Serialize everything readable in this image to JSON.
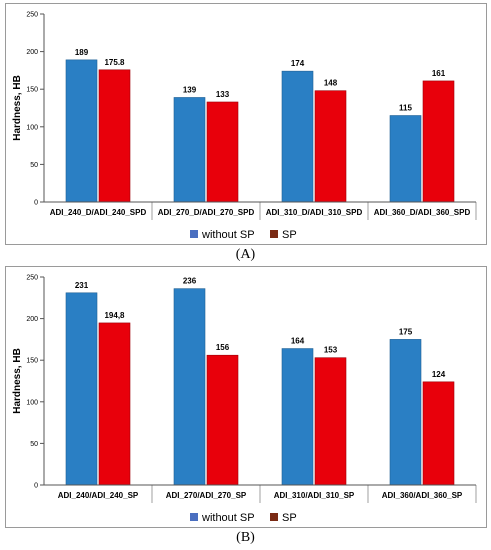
{
  "figure_labels": [
    "(A)",
    "(B)"
  ],
  "chart_data": [
    {
      "type": "bar",
      "categories": [
        "ADI_240_D/ADI_240_SPD",
        "ADI_270_D/ADI_270_SPD",
        "ADI_310_D/ADI_310_SPD",
        "ADI_360_D/ADI_360_SPD"
      ],
      "series": [
        {
          "name": "without SP",
          "values": [
            189,
            139,
            174,
            115
          ],
          "labels": [
            "189",
            "139",
            "174",
            "115"
          ],
          "color": "#2a7fc4"
        },
        {
          "name": "SP",
          "values": [
            175.8,
            133,
            148,
            161
          ],
          "labels": [
            "175.8",
            "133",
            "148",
            "161"
          ],
          "color": "#e8000b"
        }
      ],
      "ylabel": "Hardness, HB",
      "ylim": [
        0,
        250
      ],
      "yticks": [
        "0",
        "50",
        "100",
        "150",
        "200",
        "250"
      ],
      "legend_position": "bottom",
      "grid": false
    },
    {
      "type": "bar",
      "categories": [
        "ADI_240/ADI_240_SP",
        "ADI_270/ADI_270_SP",
        "ADI_310/ADI_310_SP",
        "ADI_360/ADI_360_SP"
      ],
      "series": [
        {
          "name": "without SP",
          "values": [
            231,
            236,
            164,
            175
          ],
          "labels": [
            "231",
            "236",
            "164",
            "175"
          ],
          "color": "#2a7fc4"
        },
        {
          "name": "SP",
          "values": [
            194.8,
            156,
            153,
            124
          ],
          "labels": [
            "194,8",
            "156",
            "153",
            "124"
          ],
          "color": "#e8000b"
        }
      ],
      "ylabel": "Hardness, HB",
      "ylim": [
        0,
        250
      ],
      "yticks": [
        "0",
        "50",
        "100",
        "150",
        "200",
        "250"
      ],
      "legend_position": "bottom",
      "grid": false
    }
  ]
}
